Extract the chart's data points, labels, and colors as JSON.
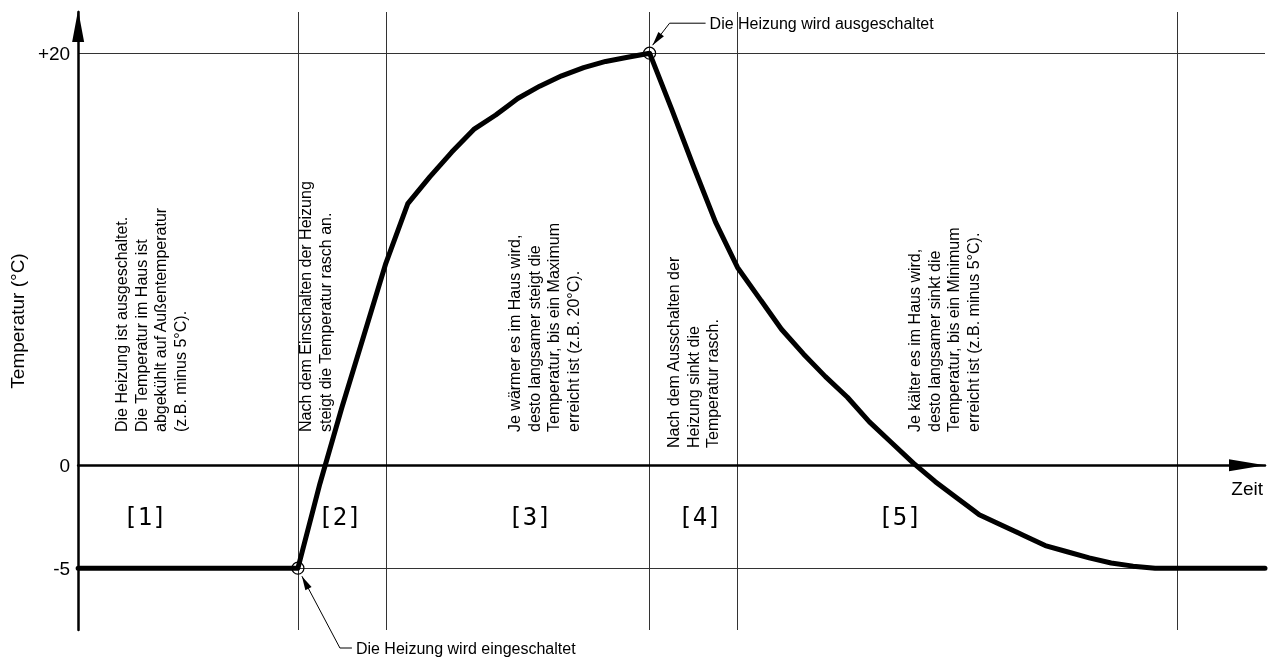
{
  "chart_data": {
    "type": "line",
    "ylabel": "Temperatur (°C)",
    "xlabel": "Zeit",
    "categories": [
      null,
      null,
      null,
      null,
      null,
      null,
      null,
      null,
      null,
      null,
      null,
      null,
      null,
      null,
      null,
      null,
      null,
      null,
      null,
      null,
      null,
      null,
      null,
      null,
      null,
      null,
      null,
      null,
      null,
      null,
      null,
      null,
      null,
      null,
      null,
      null,
      null,
      null,
      null,
      null,
      null,
      null,
      null,
      null,
      null,
      null,
      null,
      null,
      null,
      null,
      null,
      null,
      null,
      null,
      null
    ],
    "ylim": [
      -8,
      22
    ],
    "yticks": [
      {
        "value": 20,
        "label": "+20"
      },
      0,
      -5
    ],
    "tick_labels": "y",
    "grid": true,
    "series": [
      {
        "color": "#000000",
        "line_style": "solid",
        "values": [
          -5,
          -5,
          -5,
          -5,
          -5,
          -5,
          -5,
          -5,
          -5,
          -5,
          -5,
          -0.9,
          2.8,
          6.3,
          9.8,
          12.7,
          14.0,
          15.2,
          16.3,
          17.0,
          17.8,
          18.4,
          18.9,
          19.3,
          19.6,
          19.8,
          20,
          17.3,
          14.5,
          11.8,
          9.6,
          8.1,
          6.6,
          5.4,
          4.3,
          3.3,
          2.1,
          1.1,
          0.1,
          -0.8,
          -1.6,
          -2.4,
          -2.9,
          -3.4,
          -3.9,
          -4.2,
          -4.5,
          -4.75,
          -4.9,
          -5,
          -5,
          -5,
          -5,
          -5,
          -5
        ]
      }
    ],
    "annotations": [
      "Die Heizung ist ausgeschaltet.\nDie Temperatur im Haus ist\nabgekühlt auf Außentemperatur\n(z.B. minus 5°C).",
      "Nach dem Einschalten der Heizung\nsteigt die Temperatur rasch an.",
      "Je wärmer es im Haus wird,\ndesto langsamer steigt die\nTemperatur, bis ein Maximum\nerreicht ist (z.B. 20°C).",
      "Nach dem Ausschalten der\nHeizung sinkt die\nTemperatur rasch.",
      "Je kälter es im Haus wird,\ndesto langsamer sinkt die\nTemperatur, bis ein Minimum\nerreicht ist (z.B. minus 5°C).",
      "[1]",
      "[2]",
      "[3]",
      "[4]",
      "[5]",
      "Die Heizung wird ausgeschaltet",
      "Die Heizung wird eingeschaltet"
    ]
  }
}
